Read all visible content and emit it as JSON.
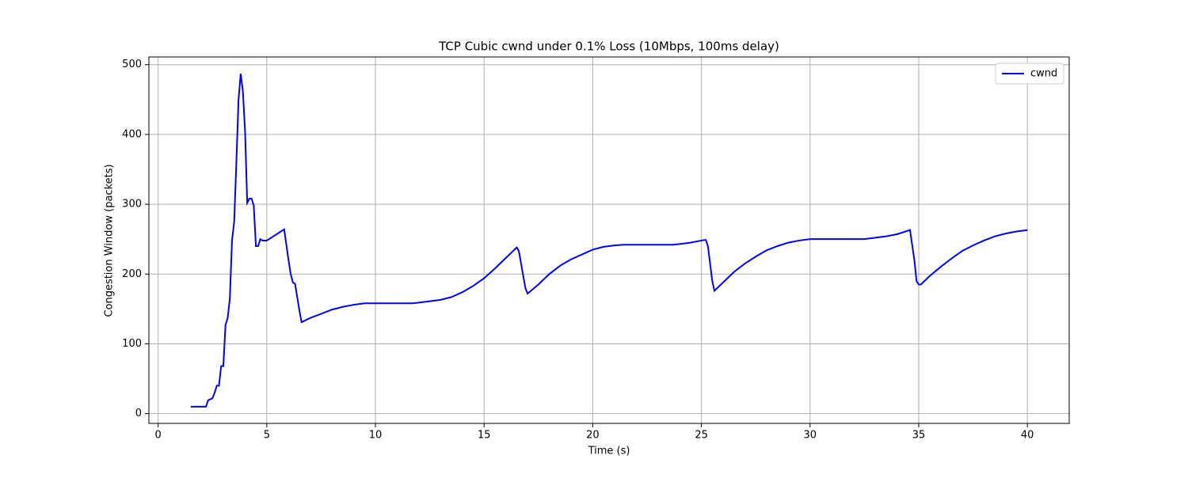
{
  "chart_data": {
    "type": "line",
    "title": "TCP Cubic cwnd under 0.1% Loss (10Mbps, 100ms delay)",
    "x_label": "Time (s)",
    "y_label": "Congestion Window (packets)",
    "x": [
      1.5,
      2.2,
      2.3,
      2.5,
      2.6,
      2.7,
      2.8,
      2.9,
      3.0,
      3.1,
      3.2,
      3.3,
      3.4,
      3.5,
      3.6,
      3.7,
      3.8,
      3.9,
      4.0,
      4.1,
      4.2,
      4.3,
      4.4,
      4.5,
      4.6,
      4.7,
      4.8,
      5.0,
      5.2,
      5.5,
      5.8,
      6.0,
      6.1,
      6.2,
      6.3,
      6.5,
      6.6,
      7,
      7.5,
      8,
      8.5,
      9,
      9.5,
      11.7,
      12,
      12.5,
      13,
      13.5,
      14,
      14.5,
      15,
      15.5,
      16,
      16.5,
      16.6,
      16.9,
      17,
      17.5,
      18,
      18.5,
      19,
      19.5,
      20,
      20.5,
      21,
      21.4,
      23.7,
      24,
      24.5,
      25,
      25.2,
      25.3,
      25.5,
      25.6,
      25.8,
      26,
      26.5,
      27,
      27.5,
      28,
      28.5,
      29,
      29.5,
      30,
      32.5,
      33,
      33.5,
      34,
      34.5,
      34.6,
      34.8,
      34.9,
      35.0,
      35.1,
      35.5,
      36,
      36.5,
      37,
      37.5,
      38,
      38.5,
      39,
      39.5,
      40
    ],
    "series": [
      {
        "name": "cwnd",
        "color": "#0000ff",
        "values": [
          10,
          10,
          19,
          22,
          30,
          40,
          40,
          68,
          68,
          127,
          137,
          165,
          248,
          275,
          360,
          450,
          487,
          462,
          405,
          302,
          308,
          308,
          298,
          240,
          240,
          250,
          248,
          248,
          252,
          258,
          264,
          220,
          200,
          188,
          186,
          148,
          131,
          137,
          143,
          149,
          153,
          156,
          158,
          158,
          159,
          161,
          163,
          167,
          174,
          183,
          194,
          208,
          223,
          238,
          233,
          180,
          172,
          185,
          200,
          212,
          221,
          228,
          235,
          239,
          241,
          242,
          242,
          243,
          245,
          248,
          249,
          240,
          190,
          176,
          182,
          188,
          203,
          215,
          225,
          234,
          240,
          245,
          248,
          250,
          250,
          252,
          254,
          257,
          262,
          263,
          220,
          190,
          185,
          185,
          197,
          210,
          222,
          233,
          241,
          248,
          254,
          258,
          261,
          263
        ]
      }
    ],
    "xlim": [
      -0.425,
      41.925
    ],
    "ylim": [
      -14,
      511
    ],
    "xticks": [
      0,
      5,
      10,
      15,
      20,
      25,
      30,
      35,
      40
    ],
    "yticks": [
      0,
      100,
      200,
      300,
      400,
      500
    ],
    "grid": true,
    "legend": "upper right"
  }
}
